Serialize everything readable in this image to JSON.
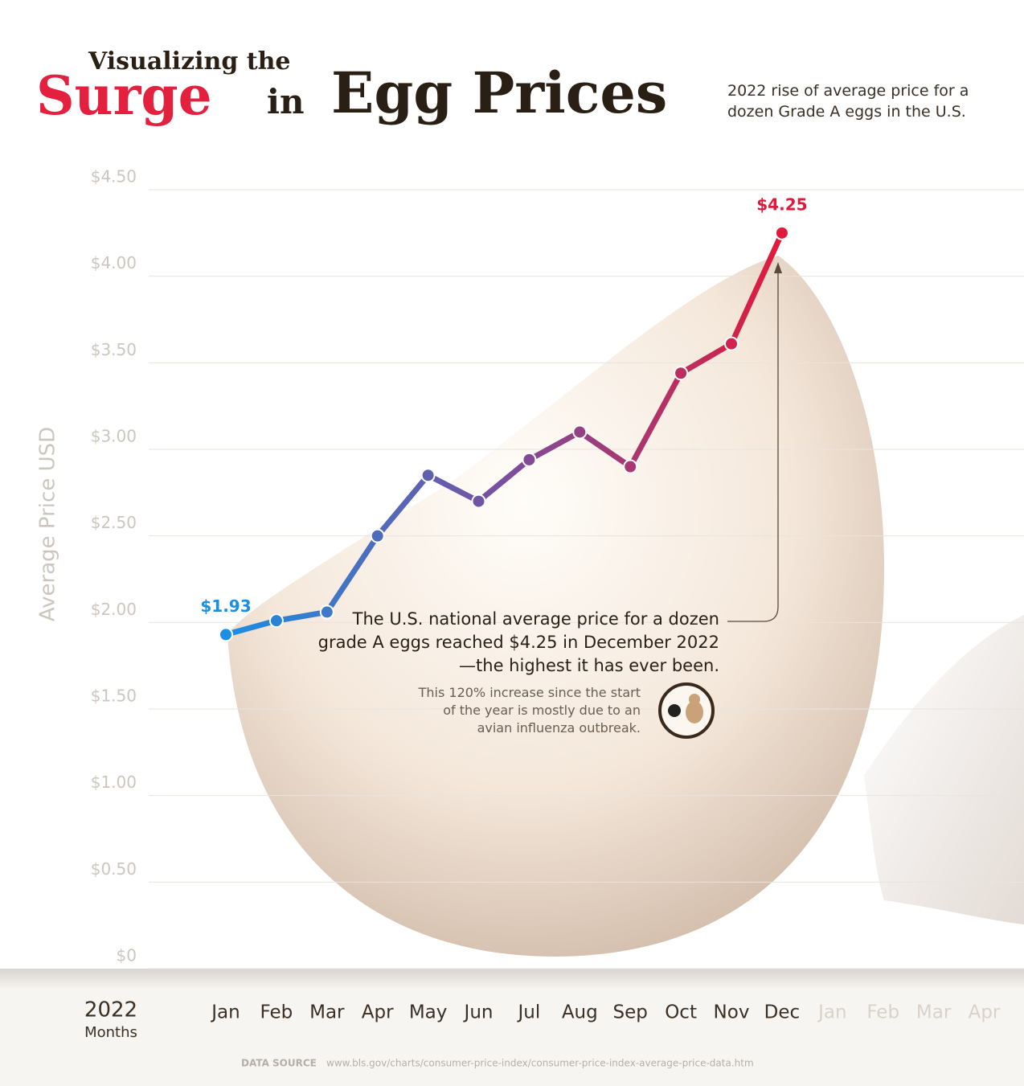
{
  "chart_data": {
    "type": "line",
    "title_lead": "Visualizing the",
    "title_highlight": "Surge",
    "title_joiner": "in",
    "title_main": "Egg Prices",
    "subtitle": "2022 rise of average price for a dozen Grade A eggs in the U.S.",
    "y_label": "Average Price USD",
    "x_label_year": "2022",
    "x_label": "Months",
    "categories": [
      "Jan",
      "Feb",
      "Mar",
      "Apr",
      "May",
      "Jun",
      "Jul",
      "Aug",
      "Sep",
      "Oct",
      "Nov",
      "Dec",
      "Jan",
      "Feb",
      "Mar",
      "Apr"
    ],
    "values": [
      1.93,
      2.01,
      2.06,
      2.5,
      2.85,
      2.7,
      2.94,
      3.1,
      2.9,
      3.44,
      3.61,
      4.25,
      null,
      null,
      null,
      null
    ],
    "value_labels": [
      "$1.93",
      null,
      null,
      null,
      null,
      null,
      null,
      null,
      null,
      null,
      null,
      "$4.25",
      null,
      null,
      null,
      null
    ],
    "colors": [
      "#1a8fe3",
      "#7a4f9e",
      "#e11a3b"
    ],
    "ylim": [
      0,
      4.5
    ],
    "yticks": [
      {
        "value": 0,
        "label": "$0"
      },
      {
        "value": 0.5,
        "label": "$0.50"
      },
      {
        "value": 1,
        "label": "$1.00"
      },
      {
        "value": 1.5,
        "label": "$1.50"
      },
      {
        "value": 2,
        "label": "$2.00"
      },
      {
        "value": 2.5,
        "label": "$2.50"
      },
      {
        "value": 3,
        "label": "$3.00"
      },
      {
        "value": 3.5,
        "label": "$3.50"
      },
      {
        "value": 4,
        "label": "$4.00"
      },
      {
        "value": 4.5,
        "label": "$4.50"
      }
    ],
    "grid": true,
    "annotation": "The U.S. national average price for a dozen grade A eggs reached $4.25 in December 2022—the highest it has ever been.",
    "annotation_note": "This 120% increase since the start of the year is mostly due to an avian influenza outbreak.",
    "source_label": "DATA SOURCE",
    "source": "www.bls.gov/charts/consumer-price-index/consumer-price-index-average-price-data.htm"
  }
}
